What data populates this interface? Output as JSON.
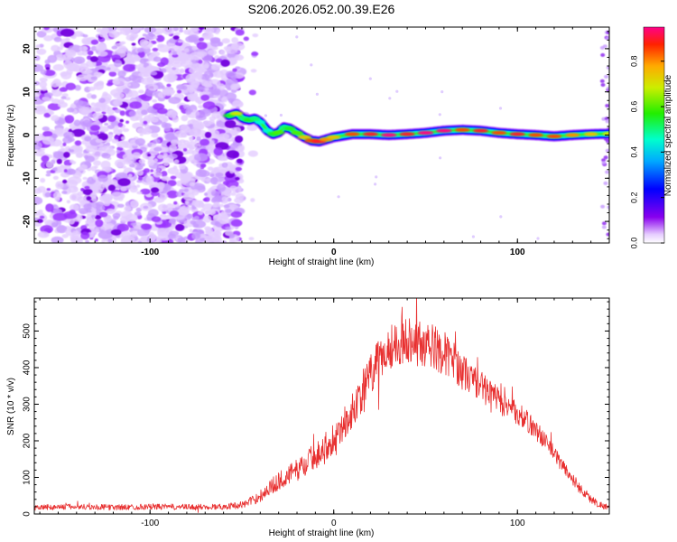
{
  "figure": {
    "title": "S206.2026.052.00.39.E26"
  },
  "chart_data": [
    {
      "type": "heatmap",
      "title": "S206.2026.052.00.39.E26",
      "xlabel": "Height of straight line (km)",
      "ylabel": "Frequency (Hz)",
      "xlim": [
        -163,
        150
      ],
      "ylim": [
        -25,
        25
      ],
      "xticks": [
        -100,
        0,
        100
      ],
      "xtick_labels": [
        "-100",
        "0",
        "100"
      ],
      "yticks": [
        -20,
        -10,
        0,
        10,
        20
      ],
      "ytick_labels": [
        "-20",
        "-10",
        "0",
        "10",
        "20"
      ],
      "colorbar": {
        "label": "Normalized spectral amplitude",
        "range": [
          0,
          0.95
        ],
        "ticks": [
          0.0,
          0.2,
          0.4,
          0.6,
          0.8
        ],
        "tick_labels": [
          "0.0",
          "0.2",
          "0.4",
          "0.6",
          "0.8"
        ]
      },
      "noise_region_x": [
        -163,
        -42
      ],
      "ridge": {
        "x": [
          -57,
          -53,
          -49,
          -46,
          -43,
          -40,
          -36,
          -33,
          -30,
          -27,
          -24,
          -20,
          -16,
          -12,
          -8,
          -4,
          0,
          10,
          20,
          30,
          40,
          50,
          60,
          70,
          80,
          90,
          100,
          110,
          120,
          130,
          140,
          150
        ],
        "y": [
          4.5,
          5.0,
          3.8,
          3.5,
          3.8,
          3.0,
          1.0,
          0.2,
          0.6,
          1.8,
          1.5,
          0.5,
          -0.5,
          -1.3,
          -1.5,
          -1.0,
          -0.5,
          0.2,
          0.2,
          0.0,
          0.2,
          0.5,
          1.0,
          1.2,
          1.0,
          0.5,
          0.2,
          0.0,
          -0.3,
          0.0,
          0.2,
          0.3
        ],
        "amplitude": [
          0.55,
          0.7,
          0.5,
          0.55,
          0.5,
          0.45,
          0.45,
          0.55,
          0.6,
          0.5,
          0.55,
          0.6,
          0.75,
          0.85,
          0.9,
          0.8,
          0.75,
          0.85,
          0.9,
          0.95,
          0.9,
          0.95,
          0.95,
          0.85,
          0.9,
          0.85,
          0.9,
          0.85,
          0.85,
          0.8,
          0.75,
          0.7
        ]
      }
    },
    {
      "type": "line",
      "xlabel": "Height of straight line (km)",
      "ylabel": "SNR (10 * v/v)",
      "xlim": [
        -163,
        150
      ],
      "ylim": [
        0,
        590
      ],
      "xticks": [
        -100,
        0,
        100
      ],
      "xtick_labels": [
        "-100",
        "0",
        "100"
      ],
      "yticks": [
        0,
        100,
        200,
        300,
        400,
        500
      ],
      "ytick_labels": [
        "0",
        "100",
        "200",
        "300",
        "400",
        "500"
      ],
      "series": [
        {
          "name": "SNR",
          "color": "#e83030",
          "x": [
            -163,
            -140,
            -120,
            -100,
            -80,
            -60,
            -50,
            -45,
            -40,
            -35,
            -30,
            -25,
            -20,
            -15,
            -10,
            -5,
            0,
            5,
            10,
            15,
            20,
            25,
            30,
            35,
            40,
            45,
            50,
            55,
            60,
            65,
            70,
            75,
            80,
            85,
            90,
            95,
            100,
            105,
            110,
            115,
            120,
            125,
            130,
            135,
            140,
            145,
            150
          ],
          "values": [
            18,
            20,
            18,
            20,
            19,
            20,
            25,
            35,
            50,
            70,
            90,
            105,
            120,
            140,
            160,
            180,
            210,
            240,
            280,
            330,
            380,
            420,
            455,
            470,
            480,
            470,
            460,
            455,
            440,
            420,
            390,
            370,
            350,
            330,
            310,
            290,
            275,
            255,
            230,
            200,
            165,
            130,
            95,
            65,
            40,
            25,
            18
          ],
          "noise": [
            8,
            8,
            8,
            8,
            8,
            8,
            10,
            12,
            18,
            22,
            25,
            28,
            30,
            35,
            38,
            40,
            42,
            45,
            50,
            55,
            60,
            60,
            62,
            65,
            65,
            65,
            65,
            62,
            60,
            55,
            50,
            45,
            42,
            40,
            38,
            35,
            32,
            30,
            28,
            25,
            22,
            20,
            18,
            15,
            12,
            10,
            8
          ]
        }
      ]
    }
  ]
}
